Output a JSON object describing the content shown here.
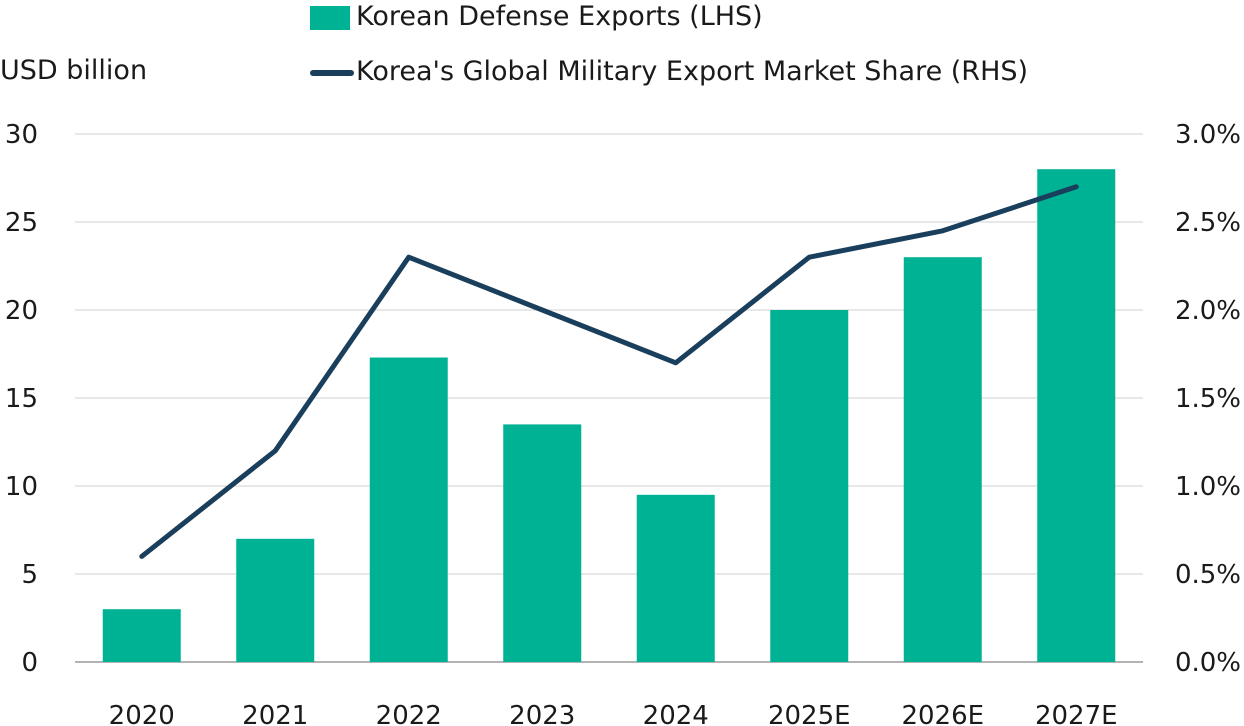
{
  "chart_data": {
    "type": "bar",
    "title": "",
    "ylabel": "USD billion",
    "categories": [
      "2020",
      "2021",
      "2022",
      "2023",
      "2024",
      "2025E",
      "2026E",
      "2027E"
    ],
    "series": [
      {
        "name": "Korean Defense Exports (LHS)",
        "type": "bar",
        "axis": "left",
        "color": "#00b294",
        "values": [
          3.0,
          7.0,
          17.3,
          13.5,
          9.5,
          20.0,
          23.0,
          28.0
        ]
      },
      {
        "name": "Korea's Global Military Export Market Share (RHS)",
        "type": "line",
        "axis": "right",
        "color": "#1a3f5c",
        "values": [
          0.6,
          1.2,
          2.3,
          2.0,
          1.7,
          2.3,
          2.45,
          2.7
        ]
      }
    ],
    "ylim_left": [
      0,
      30
    ],
    "yticks_left": [
      "0",
      "5",
      "10",
      "15",
      "20",
      "25",
      "30"
    ],
    "ylim_right": [
      0,
      3.0
    ],
    "yticks_right": [
      "0.0%",
      "0.5%",
      "1.0%",
      "1.5%",
      "2.0%",
      "2.5%",
      "3.0%"
    ],
    "grid": true,
    "legend_position": "top"
  }
}
